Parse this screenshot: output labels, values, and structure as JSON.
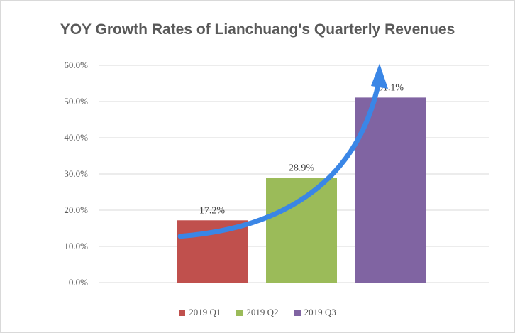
{
  "chart_data": {
    "type": "bar",
    "title": "YOY Growth Rates of Lianchuang's Quarterly Revenues",
    "xlabel": "",
    "ylabel": "",
    "categories": [
      "2019 Q1",
      "2019 Q2",
      "2019 Q3"
    ],
    "values": [
      17.2,
      28.9,
      51.1
    ],
    "value_labels": [
      "17.2%",
      "28.9%",
      "51.1%"
    ],
    "colors": [
      "#c0504d",
      "#9bbb59",
      "#8064a2"
    ],
    "ylim": [
      0,
      60
    ],
    "yticks": [
      "0.0%",
      "10.0%",
      "20.0%",
      "30.0%",
      "40.0%",
      "50.0%",
      "60.0%"
    ],
    "grid": true,
    "legend_position": "bottom",
    "annotation": {
      "type": "arrow",
      "color": "#3a86e6",
      "direction": "upward trend"
    }
  }
}
